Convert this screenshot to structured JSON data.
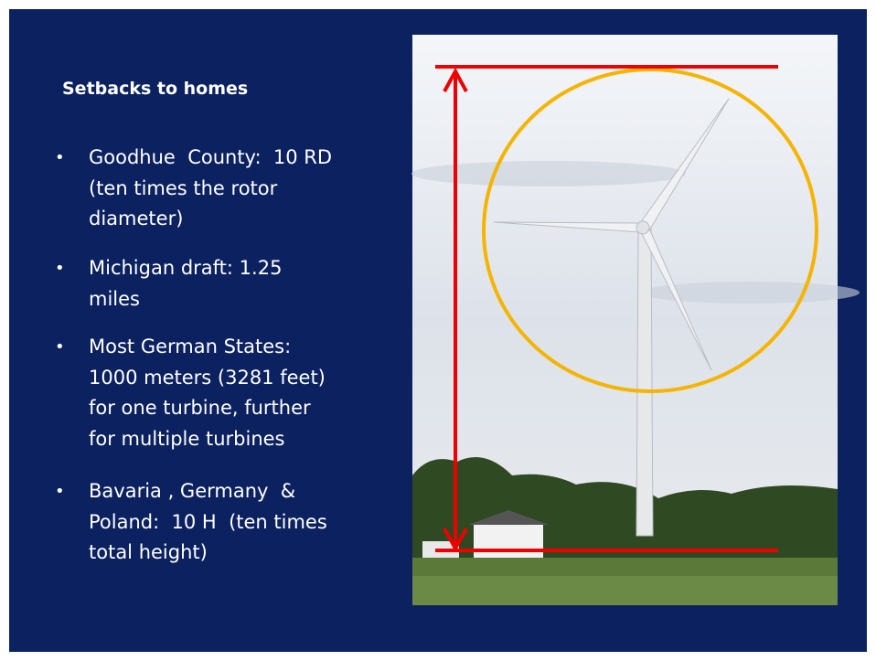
{
  "slide": {
    "title": "Setbacks to homes",
    "bullets": [
      [
        "Goodhue  County:  10 RD",
        "(ten times the rotor",
        "diameter)"
      ],
      [
        "Michigan draft: 1.25",
        "miles"
      ],
      [
        "Most German States:",
        "1000 meters (3281 feet)",
        "for one turbine, further",
        "for multiple turbines"
      ],
      [
        "Bavaria , Germany  &",
        "Poland:  10 H  (ten times",
        "total height)"
      ]
    ]
  }
}
